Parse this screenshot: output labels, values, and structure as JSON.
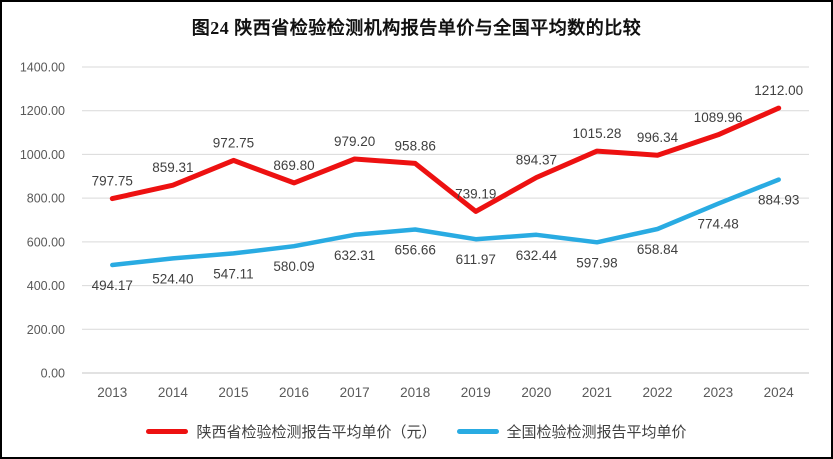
{
  "window": {
    "background_color": "#ffffff",
    "frame_border_color": "#000000"
  },
  "chart_data": {
    "type": "line",
    "title": "图24 陕西省检验检测机构报告单价与全国平均数的比较",
    "categories": [
      "2013",
      "2014",
      "2015",
      "2016",
      "2017",
      "2018",
      "2019",
      "2020",
      "2021",
      "2022",
      "2023",
      "2024"
    ],
    "series": [
      {
        "name": "陕西省检验检测报告平均单价（元）",
        "color": "#ED1111",
        "label_position": "above",
        "values": [
          797.75,
          859.31,
          972.75,
          869.8,
          979.2,
          958.86,
          739.19,
          894.37,
          1015.28,
          996.34,
          1089.96,
          1212.0
        ]
      },
      {
        "name": "全国检验检测报告平均单价",
        "color": "#29ABE2",
        "label_position": "below",
        "values": [
          494.17,
          524.4,
          547.11,
          580.09,
          632.31,
          656.66,
          611.97,
          632.44,
          597.98,
          658.84,
          774.48,
          884.93
        ]
      }
    ],
    "ylim": [
      0,
      1400
    ],
    "y_tick_step": 200,
    "y_tick_labels": [
      "0.00",
      "200.00",
      "400.00",
      "600.00",
      "800.00",
      "1000.00",
      "1200.00",
      "1400.00"
    ],
    "grid": true,
    "legend_position": "bottom",
    "gridline_color": "#D9D9D9",
    "axis_label_color": "#595959",
    "data_label_color": "#404040"
  }
}
